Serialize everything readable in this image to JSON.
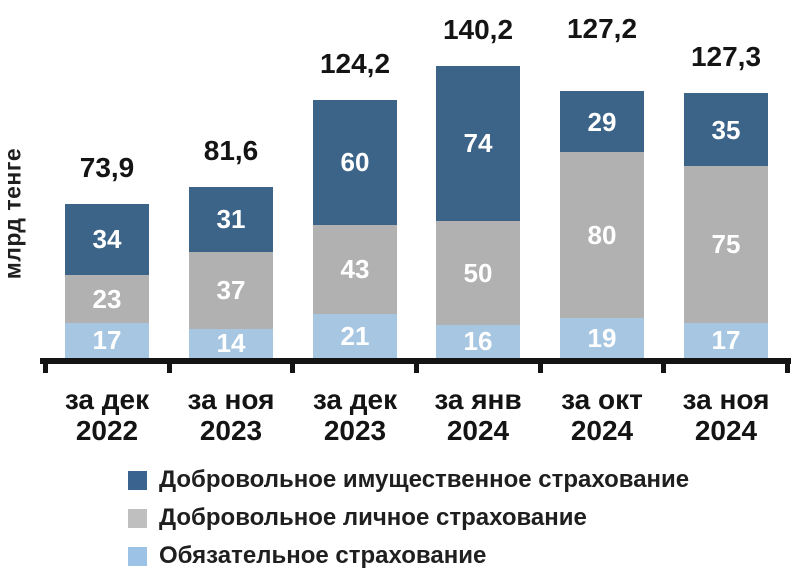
{
  "chart_data": {
    "type": "bar",
    "stacked": true,
    "title": "",
    "ylabel": "млрд тенге",
    "xlabel": "",
    "grid": false,
    "legend_position": "bottom",
    "categories": [
      {
        "line1": "за дек",
        "line2": "2022"
      },
      {
        "line1": "за ноя",
        "line2": "2023"
      },
      {
        "line1": "за дек",
        "line2": "2023"
      },
      {
        "line1": "за янв",
        "line2": "2024"
      },
      {
        "line1": "за окт",
        "line2": "2024"
      },
      {
        "line1": "за ноя",
        "line2": "2024"
      }
    ],
    "totals_display": [
      "73,9",
      "81,6",
      "124,2",
      "140,2",
      "127,2",
      "127,3"
    ],
    "totals": [
      73.9,
      81.6,
      124.2,
      140.2,
      127.2,
      127.3
    ],
    "series": [
      {
        "name": "Обязательное страхование",
        "color": "#A7C6E2",
        "legend_color": "#9CC3E6",
        "values": [
          17,
          14,
          21,
          16,
          19,
          17
        ]
      },
      {
        "name": "Добровольное личное страхование",
        "color": "#B1B1B1",
        "legend_color": "#BFBFBF",
        "values": [
          23,
          37,
          43,
          50,
          80,
          75
        ]
      },
      {
        "name": "Добровольное имущественное страхование",
        "color": "#3C6489",
        "legend_color": "#3A648F",
        "values": [
          34,
          31,
          60,
          74,
          29,
          35
        ]
      }
    ],
    "colors": {
      "axis": "#141414",
      "category_text": "#141414",
      "total_text": "#141414",
      "value_text": "#ffffff",
      "background": "#ffffff"
    }
  }
}
